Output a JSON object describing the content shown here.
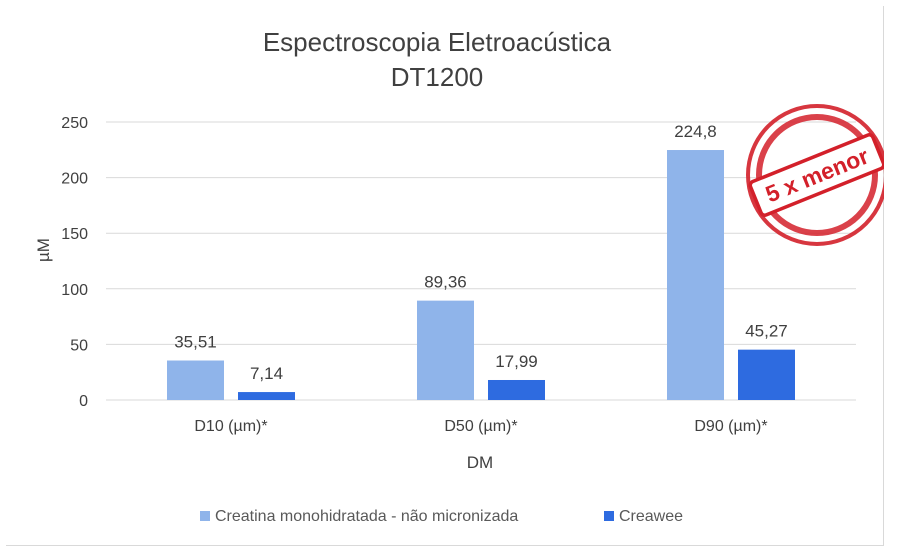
{
  "chart_data": {
    "type": "bar",
    "title": [
      "Espectroscopia Eletroacústica",
      "DT1200"
    ],
    "xlabel": "DM",
    "ylabel": "µM",
    "ylim": [
      0,
      250
    ],
    "yticks": [
      "0",
      "50",
      "100",
      "150",
      "200",
      "250"
    ],
    "categories": [
      "D10 (µm)*",
      "D50 (µm)*",
      "D90 (µm)*"
    ],
    "series": [
      {
        "name": "Creatina monohidratada - não micronizada",
        "values": [
          35.51,
          89.36,
          224.8
        ],
        "labels": [
          "35,51",
          "89,36",
          "224,8"
        ],
        "color": "#8fb4ea"
      },
      {
        "name": "Creawee",
        "values": [
          7.14,
          17.99,
          45.27
        ],
        "labels": [
          "7,14",
          "17,99",
          "45,27"
        ],
        "color": "#2e6be0"
      }
    ],
    "grid": true,
    "legend_position": "bottom",
    "annotation": {
      "text": "5 x menor",
      "style": "stamp",
      "color": "#d3202a"
    }
  }
}
